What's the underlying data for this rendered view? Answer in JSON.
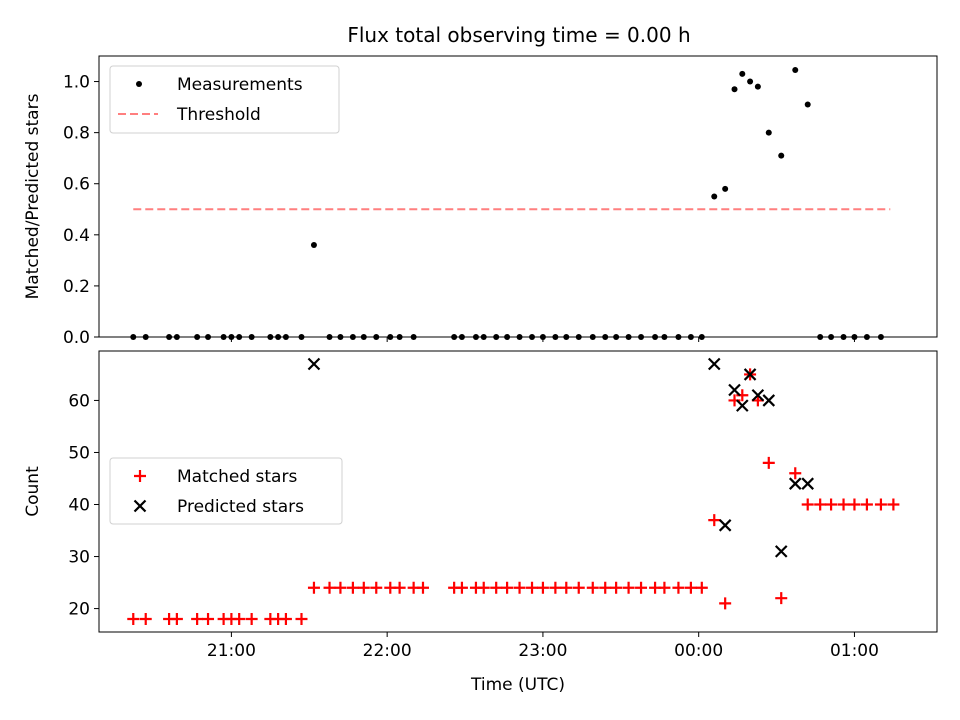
{
  "figure": {
    "title": "Flux total observing time = 0.00 h"
  },
  "chart_data": [
    {
      "type": "scatter",
      "ylabel": "Matched/Predicted stars",
      "xlabel": "",
      "xlim": [
        -0.85,
        4.53
      ],
      "ylim": [
        0,
        1.1
      ],
      "y_ticks": [
        0.0,
        0.2,
        0.4,
        0.6,
        0.8,
        1.0
      ],
      "y_tick_labels": [
        "0.0",
        "0.2",
        "0.4",
        "0.6",
        "0.8",
        "1.0"
      ],
      "x_ticks": [
        0,
        1,
        2,
        3,
        4
      ],
      "x_tick_labels": [
        "",
        "",
        "",
        "",
        ""
      ],
      "legend": {
        "position": "upper-left",
        "entries": [
          "Measurements",
          "Threshold"
        ]
      },
      "colors": {
        "measurements": "#000000",
        "threshold": "#ff7f7f"
      },
      "series": [
        {
          "name": "Measurements",
          "x": [
            -0.63,
            -0.55,
            -0.4,
            -0.35,
            -0.22,
            -0.15,
            -0.05,
            0.0,
            0.05,
            0.13,
            0.25,
            0.3,
            0.35,
            0.45,
            0.53,
            0.63,
            0.7,
            0.78,
            0.85,
            0.93,
            1.02,
            1.08,
            1.17,
            1.43,
            1.48,
            1.57,
            1.62,
            1.7,
            1.77,
            1.85,
            1.93,
            2.0,
            2.08,
            2.15,
            2.23,
            2.32,
            2.4,
            2.47,
            2.55,
            2.63,
            2.72,
            2.78,
            2.87,
            2.95,
            3.02,
            3.1,
            3.17,
            3.23,
            3.28,
            3.33,
            3.38,
            3.45,
            3.53,
            3.62,
            3.7,
            3.78,
            3.85,
            3.93,
            4.0,
            4.08,
            4.17
          ],
          "y": [
            0,
            0,
            0,
            0,
            0,
            0,
            0,
            0,
            0,
            0,
            0,
            0,
            0,
            0,
            0.36,
            0,
            0,
            0,
            0,
            0,
            0,
            0,
            0,
            0,
            0,
            0,
            0,
            0,
            0,
            0,
            0,
            0,
            0,
            0,
            0,
            0,
            0,
            0,
            0,
            0,
            0,
            0,
            0,
            0,
            0,
            0.55,
            0.58,
            0.97,
            1.03,
            1.0,
            0.98,
            0.8,
            0.71,
            1.045,
            0.91,
            0,
            0,
            0,
            0,
            0,
            0
          ]
        },
        {
          "name": "Threshold",
          "style": "dashed",
          "x": [
            -0.63,
            4.23
          ],
          "y": [
            0.5,
            0.5
          ]
        }
      ]
    },
    {
      "type": "scatter",
      "ylabel": "Count",
      "xlabel": "Time (UTC)",
      "xlim": [
        -0.85,
        4.53
      ],
      "ylim": [
        15.5,
        69.5
      ],
      "y_ticks": [
        20,
        30,
        40,
        50,
        60
      ],
      "y_tick_labels": [
        "20",
        "30",
        "40",
        "50",
        "60"
      ],
      "x_ticks": [
        0,
        1,
        2,
        3,
        4
      ],
      "x_tick_labels": [
        "21:00",
        "22:00",
        "23:00",
        "00:00",
        "01:00"
      ],
      "legend": {
        "position": "center-left",
        "entries": [
          "Matched stars",
          "Predicted stars"
        ]
      },
      "colors": {
        "matched": "#ff0000",
        "predicted": "#000000"
      },
      "series": [
        {
          "name": "Matched stars",
          "marker": "+",
          "x": [
            -0.63,
            -0.55,
            -0.4,
            -0.35,
            -0.22,
            -0.15,
            -0.05,
            0.0,
            0.05,
            0.13,
            0.25,
            0.3,
            0.35,
            0.45,
            0.53,
            0.63,
            0.7,
            0.78,
            0.85,
            0.93,
            1.02,
            1.08,
            1.17,
            1.23,
            1.43,
            1.48,
            1.57,
            1.62,
            1.7,
            1.77,
            1.85,
            1.93,
            2.0,
            2.08,
            2.15,
            2.23,
            2.32,
            2.4,
            2.47,
            2.55,
            2.63,
            2.72,
            2.78,
            2.87,
            2.95,
            3.02,
            3.1,
            3.17,
            3.23,
            3.28,
            3.33,
            3.38,
            3.45,
            3.53,
            3.62,
            3.7,
            3.78,
            3.85,
            3.93,
            4.0,
            4.08,
            4.17,
            4.25
          ],
          "y": [
            18,
            18,
            18,
            18,
            18,
            18,
            18,
            18,
            18,
            18,
            18,
            18,
            18,
            18,
            24,
            24,
            24,
            24,
            24,
            24,
            24,
            24,
            24,
            24,
            24,
            24,
            24,
            24,
            24,
            24,
            24,
            24,
            24,
            24,
            24,
            24,
            24,
            24,
            24,
            24,
            24,
            24,
            24,
            24,
            24,
            24,
            37,
            21,
            60,
            61,
            65,
            60,
            48,
            22,
            46,
            40,
            40,
            40,
            40,
            40,
            40,
            40,
            40
          ]
        },
        {
          "name": "Predicted stars",
          "marker": "x",
          "x": [
            0.53,
            3.1,
            3.17,
            3.23,
            3.28,
            3.33,
            3.38,
            3.45,
            3.53,
            3.62,
            3.7
          ],
          "y": [
            67,
            67,
            36,
            62,
            59,
            65,
            61,
            60,
            31,
            44,
            44
          ]
        }
      ]
    }
  ]
}
